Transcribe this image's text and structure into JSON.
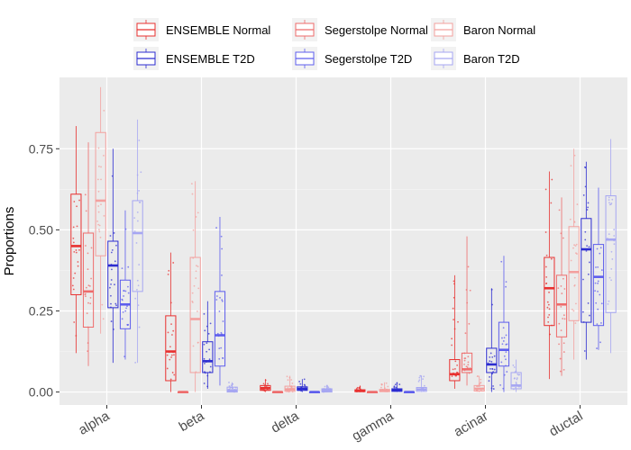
{
  "chart_data": {
    "type": "boxplot",
    "title": "",
    "xlabel": "",
    "ylabel": "Proportions",
    "ylim": [
      -0.04,
      0.97
    ],
    "yticks": [
      0.0,
      0.25,
      0.5,
      0.75
    ],
    "ytick_labels": [
      "0.00",
      "0.25",
      "0.50",
      "0.75"
    ],
    "legend_position": "top",
    "grid": true,
    "categories": [
      "alpha",
      "beta",
      "delta",
      "gamma",
      "acinar",
      "ductal"
    ],
    "series": [
      {
        "name": "ENSEMBLE Normal",
        "color": "#e8302f",
        "boxes": [
          {
            "whisker_low": 0.12,
            "q1": 0.3,
            "median": 0.45,
            "q3": 0.61,
            "whisker_high": 0.82
          },
          {
            "whisker_low": 0.0,
            "q1": 0.035,
            "median": 0.125,
            "q3": 0.235,
            "whisker_high": 0.43
          },
          {
            "whisker_low": 0.0,
            "q1": 0.005,
            "median": 0.012,
            "q3": 0.02,
            "whisker_high": 0.04
          },
          {
            "whisker_low": 0.0,
            "q1": 0.001,
            "median": 0.004,
            "q3": 0.007,
            "whisker_high": 0.02
          },
          {
            "whisker_low": 0.01,
            "q1": 0.035,
            "median": 0.055,
            "q3": 0.1,
            "whisker_high": 0.36
          },
          {
            "whisker_low": 0.04,
            "q1": 0.205,
            "median": 0.32,
            "q3": 0.415,
            "whisker_high": 0.68
          }
        ]
      },
      {
        "name": "Segerstolpe Normal",
        "color": "#ee6b6b",
        "boxes": [
          {
            "whisker_low": 0.08,
            "q1": 0.2,
            "median": 0.31,
            "q3": 0.49,
            "whisker_high": 0.77
          },
          {
            "whisker_low": 0.0,
            "q1": 0.0,
            "median": 0.0,
            "q3": 0.0,
            "whisker_high": 0.0
          },
          {
            "whisker_low": 0.0,
            "q1": 0.0,
            "median": 0.0,
            "q3": 0.0,
            "whisker_high": 0.0
          },
          {
            "whisker_low": 0.0,
            "q1": 0.0,
            "median": 0.0,
            "q3": 0.0,
            "whisker_high": 0.0
          },
          {
            "whisker_low": 0.02,
            "q1": 0.06,
            "median": 0.07,
            "q3": 0.12,
            "whisker_high": 0.48
          },
          {
            "whisker_low": 0.05,
            "q1": 0.17,
            "median": 0.27,
            "q3": 0.36,
            "whisker_high": 0.6
          }
        ]
      },
      {
        "name": "Baron Normal",
        "color": "#f3a09e",
        "boxes": [
          {
            "whisker_low": 0.18,
            "q1": 0.42,
            "median": 0.59,
            "q3": 0.8,
            "whisker_high": 0.94
          },
          {
            "whisker_low": 0.0,
            "q1": 0.06,
            "median": 0.225,
            "q3": 0.415,
            "whisker_high": 0.65
          },
          {
            "whisker_low": 0.0,
            "q1": 0.002,
            "median": 0.008,
            "q3": 0.018,
            "whisker_high": 0.05
          },
          {
            "whisker_low": 0.0,
            "q1": 0.001,
            "median": 0.004,
            "q3": 0.008,
            "whisker_high": 0.03
          },
          {
            "whisker_low": 0.0,
            "q1": 0.003,
            "median": 0.01,
            "q3": 0.02,
            "whisker_high": 0.05
          },
          {
            "whisker_low": 0.1,
            "q1": 0.22,
            "median": 0.37,
            "q3": 0.51,
            "whisker_high": 0.75
          }
        ]
      },
      {
        "name": "ENSEMBLE T2D",
        "color": "#2c2cd0",
        "boxes": [
          {
            "whisker_low": 0.09,
            "q1": 0.26,
            "median": 0.39,
            "q3": 0.465,
            "whisker_high": 0.75
          },
          {
            "whisker_low": 0.01,
            "q1": 0.06,
            "median": 0.095,
            "q3": 0.155,
            "whisker_high": 0.28
          },
          {
            "whisker_low": 0.0,
            "q1": 0.005,
            "median": 0.01,
            "q3": 0.016,
            "whisker_high": 0.04
          },
          {
            "whisker_low": 0.0,
            "q1": 0.002,
            "median": 0.006,
            "q3": 0.01,
            "whisker_high": 0.03
          },
          {
            "whisker_low": 0.0,
            "q1": 0.06,
            "median": 0.085,
            "q3": 0.135,
            "whisker_high": 0.32
          },
          {
            "whisker_low": 0.1,
            "q1": 0.215,
            "median": 0.44,
            "q3": 0.535,
            "whisker_high": 0.71
          }
        ]
      },
      {
        "name": "Segerstolpe T2D",
        "color": "#5d5ded",
        "boxes": [
          {
            "whisker_low": 0.1,
            "q1": 0.195,
            "median": 0.27,
            "q3": 0.345,
            "whisker_high": 0.56
          },
          {
            "whisker_low": 0.02,
            "q1": 0.08,
            "median": 0.175,
            "q3": 0.31,
            "whisker_high": 0.54
          },
          {
            "whisker_low": 0.0,
            "q1": 0.0,
            "median": 0.0,
            "q3": 0.0,
            "whisker_high": 0.0
          },
          {
            "whisker_low": 0.0,
            "q1": 0.0,
            "median": 0.0,
            "q3": 0.0,
            "whisker_high": 0.0
          },
          {
            "whisker_low": 0.0,
            "q1": 0.08,
            "median": 0.13,
            "q3": 0.215,
            "whisker_high": 0.42
          },
          {
            "whisker_low": 0.13,
            "q1": 0.205,
            "median": 0.355,
            "q3": 0.455,
            "whisker_high": 0.63
          }
        ]
      },
      {
        "name": "Baron T2D",
        "color": "#a6a6f2",
        "boxes": [
          {
            "whisker_low": 0.09,
            "q1": 0.31,
            "median": 0.49,
            "q3": 0.59,
            "whisker_high": 0.84
          },
          {
            "whisker_low": 0.0,
            "q1": 0.0,
            "median": 0.005,
            "q3": 0.015,
            "whisker_high": 0.03
          },
          {
            "whisker_low": 0.0,
            "q1": 0.0,
            "median": 0.005,
            "q3": 0.01,
            "whisker_high": 0.02
          },
          {
            "whisker_low": 0.0,
            "q1": 0.002,
            "median": 0.008,
            "q3": 0.014,
            "whisker_high": 0.05
          },
          {
            "whisker_low": 0.0,
            "q1": 0.01,
            "median": 0.02,
            "q3": 0.06,
            "whisker_high": 0.1
          },
          {
            "whisker_low": 0.12,
            "q1": 0.245,
            "median": 0.47,
            "q3": 0.605,
            "whisker_high": 0.78
          }
        ]
      }
    ]
  }
}
